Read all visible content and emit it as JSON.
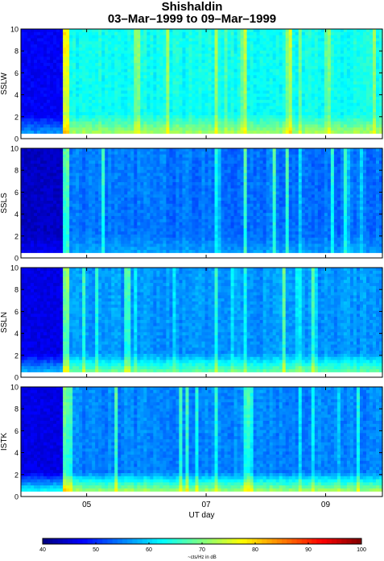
{
  "chart_data": {
    "type": "heatmap",
    "title": "Shishaldin",
    "subtitle": "03–Mar–1999 to 09–Mar–1999",
    "xlabel": "UT day",
    "x_tick_labels": [
      "05",
      "07",
      "09"
    ],
    "x_tick_days": [
      5,
      7,
      9
    ],
    "xlim": [
      3.9,
      9.95
    ],
    "y_tick_labels": [
      "0",
      "2",
      "4",
      "6",
      "8",
      "10"
    ],
    "ylim": [
      0,
      10
    ],
    "panels": [
      {
        "ylabel": "SSLW",
        "event_start_day": 4.6,
        "baseline_level": 47,
        "active_level": 62,
        "low_band_boost": 12
      },
      {
        "ylabel": "SSLS",
        "event_start_day": 4.6,
        "baseline_level": 44,
        "active_level": 53,
        "low_band_boost": 4
      },
      {
        "ylabel": "SSLN",
        "event_start_day": 4.6,
        "baseline_level": 46,
        "active_level": 55,
        "low_band_boost": 16
      },
      {
        "ylabel": "ISTK",
        "event_start_day": 4.6,
        "baseline_level": 46,
        "active_level": 54,
        "low_band_boost": 22
      }
    ],
    "colorbar": {
      "min": 40,
      "max": 100,
      "tick_labels": [
        "40",
        "50",
        "60",
        "70",
        "80",
        "90",
        "100"
      ],
      "label": "~cts/Hz in dB",
      "colormap": "jet"
    }
  }
}
